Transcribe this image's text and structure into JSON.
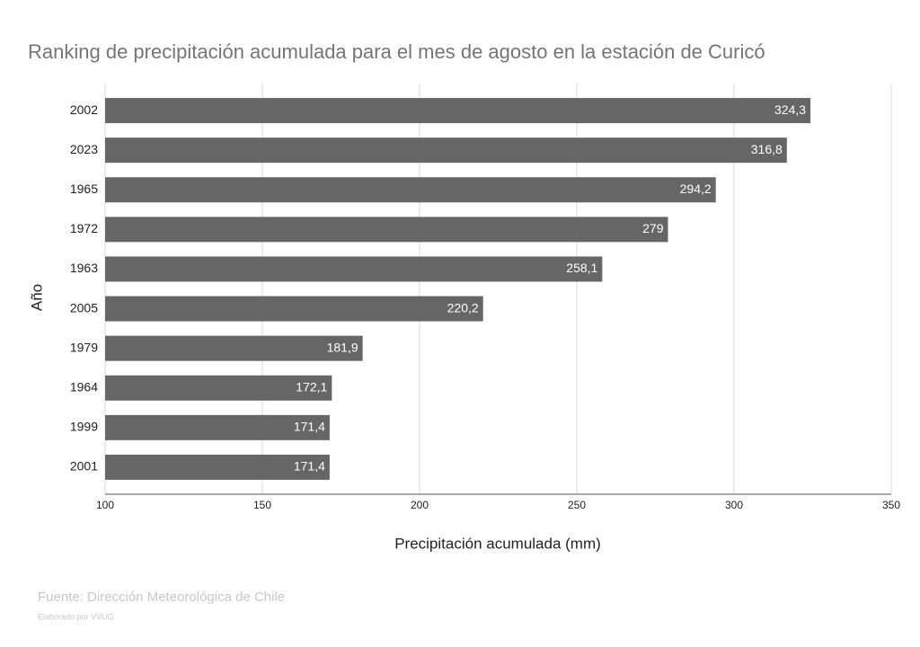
{
  "chart_data": {
    "type": "bar",
    "orientation": "horizontal",
    "title": "Ranking de precipitación acumulada para el mes de agosto en la estación de Curicó",
    "xlabel": "Precipitación acumulada (mm)",
    "ylabel": "Año",
    "categories": [
      "2002",
      "2023",
      "1965",
      "1972",
      "1963",
      "2005",
      "1979",
      "1964",
      "1999",
      "2001"
    ],
    "values": [
      324.3,
      316.8,
      294.2,
      279,
      258.1,
      220.2,
      181.9,
      172.1,
      171.4,
      171.4
    ],
    "value_labels": [
      "324,3",
      "316,8",
      "294,2",
      "279",
      "258,1",
      "220,2",
      "181,9",
      "172,1",
      "171,4",
      "171,4"
    ],
    "color": "#666666",
    "xlim": [
      100,
      350
    ],
    "xticks": [
      100,
      150,
      200,
      250,
      300,
      350
    ],
    "grid": true,
    "source": "Fuente: Dirección Meteorológica de Chile",
    "credit": "Elaborado por VVUG"
  }
}
